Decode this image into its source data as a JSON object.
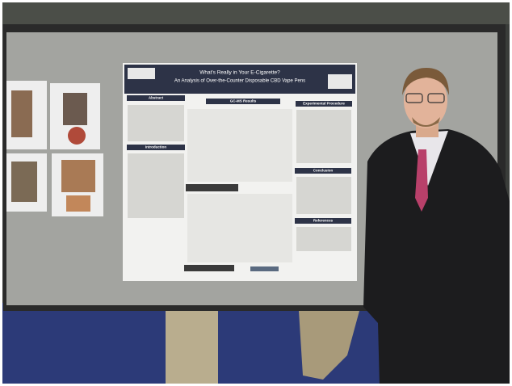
{
  "poster": {
    "title": "What's Really in Your E-Cigarette?",
    "subtitle": "An Analysis of Over-the-Counter Disposable CBD Vape Pens",
    "sections": [
      "Abstract",
      "GC-MS Results",
      "Experimental Procedure",
      "Introduction",
      "Conclusion",
      "References"
    ]
  }
}
